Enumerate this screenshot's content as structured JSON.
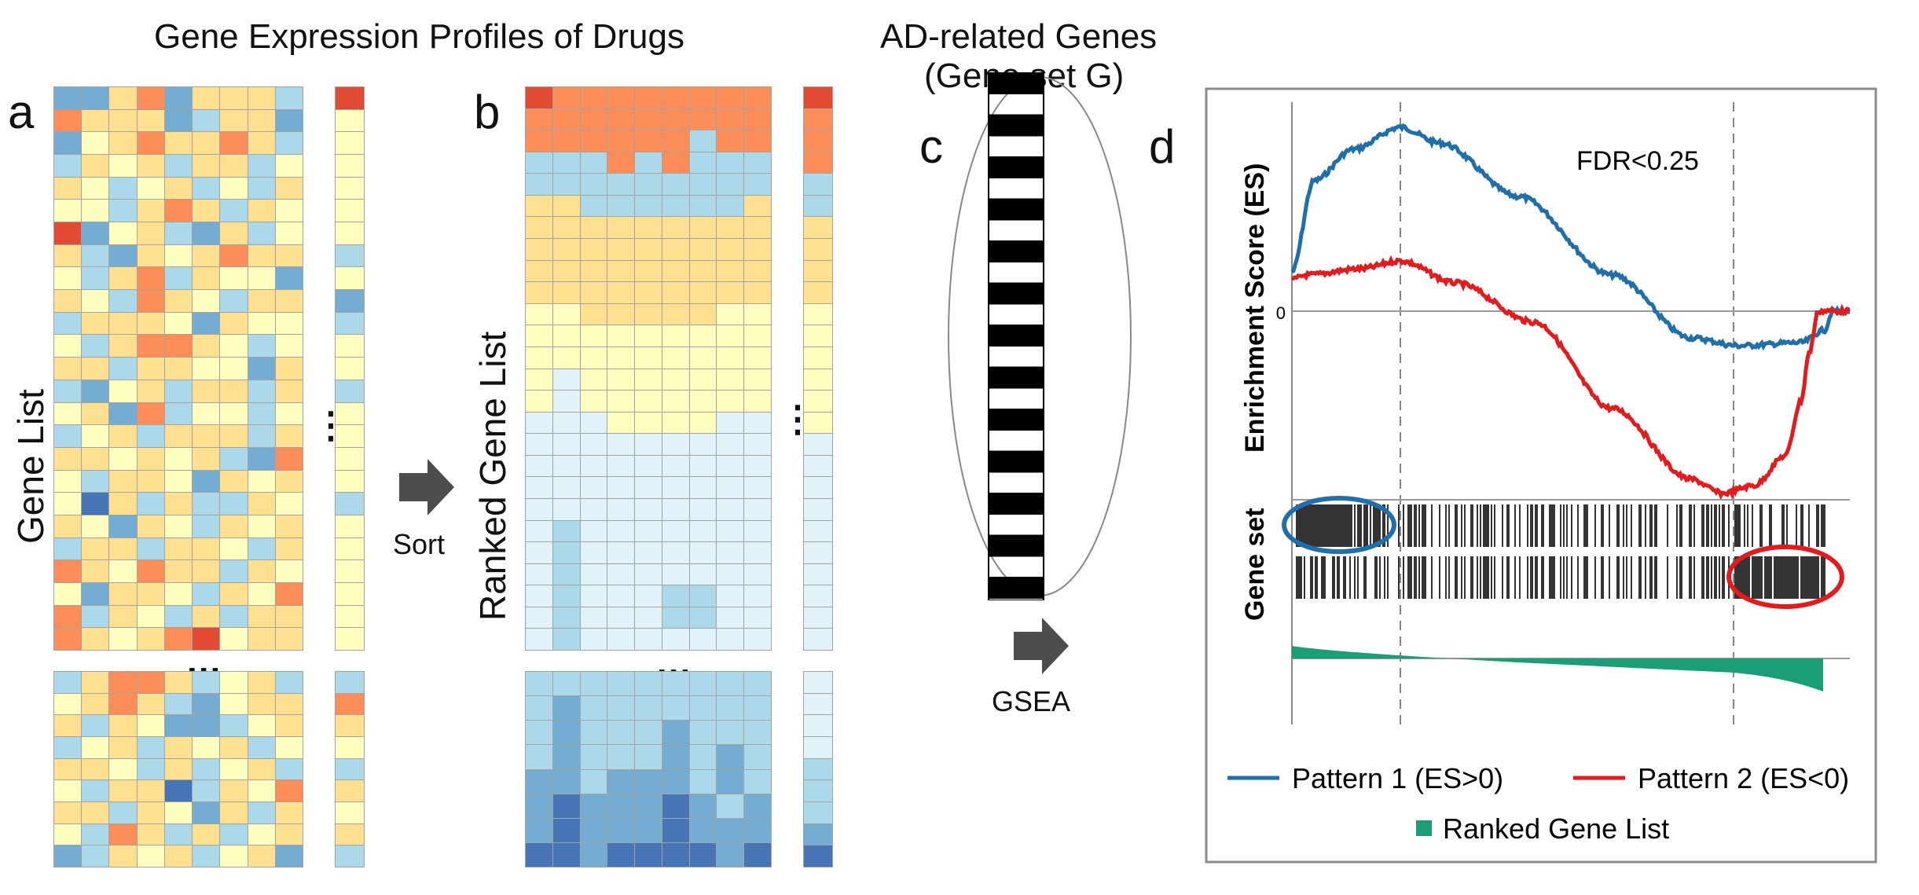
{
  "titles": {
    "expr": "Gene Expression Profiles of Drugs",
    "ad_line1": "AD-related Genes",
    "ad_line2": "(Gene set G)"
  },
  "panels": {
    "a": "a",
    "b": "b",
    "c": "c",
    "d": "d"
  },
  "labels": {
    "gene_list": "Gene List",
    "ranked_gene_list": "Ranked Gene List",
    "sort": "Sort",
    "gsea": "GSEA",
    "ellipsis": "...",
    "vertical_ellipsis": "⋮"
  },
  "colors": {
    "red": "#e34a33",
    "orange": "#fc8d59",
    "light_orange": "#fdb462",
    "yellow": "#fee090",
    "pale_yellow": "#ffffbf",
    "pale_blue": "#e0f3f8",
    "light_blue": "#abd9e9",
    "blue": "#74add1",
    "dark_blue": "#4575b4",
    "pattern1": "#1f6fab",
    "pattern2": "#e41a1c",
    "ranked_area": "#1b9e77",
    "arrow": "#4d4d4d"
  },
  "heatmap_a_top": [
    "BBYOBYYYL",
    "OYYYBLYYB",
    "BPYOYYOYL",
    "LYPYLYYLP",
    "YPLPYLPLY",
    "PPLYOYLYP",
    "RBPYLBYLP",
    "YLBYPYOYY",
    "PLYOLYPPB",
    "YPLOYPLYY",
    "LYYYPBYPP",
    "PLYOOYPLP",
    "YYLYYPPBY",
    "LBPYLYYLY",
    "PYBOLPPLP",
    "LPYLYYYLY",
    "YYPYPYLBO",
    "PLYYPBYPY",
    "PDYLYLLYP",
    "YPBYPLYPY",
    "LYYLYYPLY",
    "OYPOYYLYP",
    "PBYYPLYPO",
    "OLYPLYLYY",
    "OYPYORPYY"
  ],
  "heatmap_a_top_col": "RPPPPPPLPBLPPLPPPPLPPPPPP",
  "heatmap_a_bottom": [
    "LYOOYLPYL",
    "PYOYLBPYY",
    "YLYPBBLPY",
    "LPYLYPYLP",
    "YYPLYLPYL",
    "PLYYDLYPO",
    "YYLYPBYLY",
    "PLOYLYLPY",
    "BLYPYLPYB"
  ],
  "heatmap_a_bottom_col": "LOYPLYPYL",
  "heatmap_b_top": [
    "RO OOOOOOO",
    "OOOOOOOOO",
    "OOOOOOLOO",
    "LLLOLOLLL",
    "LLLLLLLLL",
    "YYLLLLLLY",
    "YYYYYYYYY",
    "YYYYYYYYY",
    "YYYYYYYYY",
    "YYYYYYYYY",
    "PPYYYYYPP",
    "PPPPPPPPP",
    "PPPPPPPPP",
    "PEPPPPPPP",
    "PEPPPPPPP",
    "EEEPPPPEE",
    "EEEEEEEEE",
    "EEEEEEEEE",
    "EEEEEEEEE",
    "EEEEEEEEE",
    "ELEEEEEEE",
    "ELEEEEEEE",
    "ELEEEEEEE",
    "ELEEELLEE",
    "ELEEELLEE",
    "ELEEEEEEE"
  ],
  "heatmap_b_top_col": "ROOOLLYYYYPPPPPPEEEEEEEEEE",
  "heatmap_b_bottom": [
    "LLLLLLLLL",
    "LBLLLLLLL",
    "LBLLLBLLL",
    "LBLLLBLBL",
    "BBLBBBLBL",
    "BDBBBDBLB",
    "BDBBBDBBB",
    "DDBDDDDBD"
  ],
  "heatmap_b_bottom_col": "EEEELLLBD",
  "gsea": {
    "fdr": "FDR<0.25",
    "ylabel": "Enrichment Score (ES)",
    "gene_set_label": "Gene set",
    "zero": "0",
    "legend": {
      "p1": "Pattern 1 (ES>0)",
      "p2": "Pattern 2 (ES<0)",
      "ranked": "Ranked Gene List"
    }
  }
}
